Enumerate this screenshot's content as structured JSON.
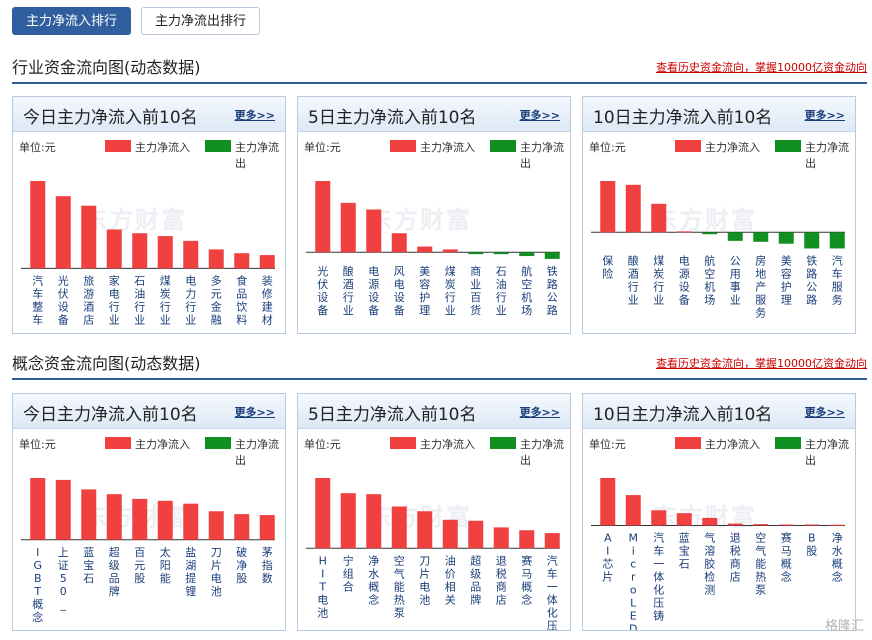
{
  "tabs": [
    {
      "label": "主力净流入排行",
      "active": true
    },
    {
      "label": "主力净流出排行",
      "active": false
    }
  ],
  "colors": {
    "inflow": "#f04040",
    "outflow": "#109020",
    "accent": "#2f5f9e",
    "link": "#cc0000"
  },
  "sections": [
    {
      "title": "行业资金流向图(动态数据)",
      "link": "查看历史资金流向，掌握10000亿资金动向",
      "panels": [
        {
          "title": "今日主力净流入前10名",
          "more": "更多>>",
          "unit": "单位:元",
          "legend_in": "主力净流入",
          "legend_out": "主力净流出",
          "chart_data": {
            "type": "bar",
            "categories": [
              "汽车整车",
              "光伏设备",
              "旅游酒店",
              "家电行业",
              "石油行业",
              "煤炭行业",
              "电力行业",
              "多元金融",
              "食品饮料",
              "装修建材"
            ],
            "values": [
              9.2,
              7.6,
              6.6,
              4.1,
              3.7,
              3.4,
              2.9,
              2.0,
              1.6,
              1.4
            ]
          }
        },
        {
          "title": "5日主力净流入前10名",
          "more": "更多>>",
          "unit": "单位:元",
          "legend_in": "主力净流入",
          "legend_out": "主力净流出",
          "chart_data": {
            "type": "bar",
            "categories": [
              "光伏设备",
              "酿酒行业",
              "电源设备",
              "风电设备",
              "美容护理",
              "煤炭行业",
              "商业百货",
              "石油行业",
              "航空机场",
              "铁路公路"
            ],
            "values": [
              7.5,
              5.2,
              4.5,
              2.0,
              0.6,
              0.3,
              -0.2,
              -0.2,
              -0.4,
              -0.7
            ]
          }
        },
        {
          "title": "10日主力净流入前10名",
          "more": "更多>>",
          "unit": "单位:元",
          "legend_in": "主力净流入",
          "legend_out": "主力净流出",
          "chart_data": {
            "type": "bar",
            "categories": [
              "保险",
              "酿酒行业",
              "煤炭行业",
              "电源设备",
              "航空机场",
              "公用事业",
              "房地产服务",
              "美容护理",
              "铁路公路",
              "汽车服务"
            ],
            "values": [
              5.4,
              5.0,
              3.0,
              0.1,
              -0.2,
              -0.9,
              -1.0,
              -1.2,
              -1.7,
              -1.7
            ]
          }
        }
      ]
    },
    {
      "title": "概念资金流向图(动态数据)",
      "link": "查看历史资金流向，掌握10000亿资金动向",
      "panels": [
        {
          "title": "今日主力净流入前10名",
          "more": "更多>>",
          "unit": "单位:元",
          "legend_in": "主力净流入",
          "legend_out": "主力净流出",
          "chart_data": {
            "type": "bar",
            "categories": [
              "IGBT概念",
              "上证50_",
              "蓝宝石",
              "超级品牌",
              "百元股",
              "太阳能",
              "盐湖提锂",
              "刀片电池",
              "破净股",
              "茅指数"
            ],
            "values": [
              6.5,
              6.3,
              5.3,
              4.8,
              4.3,
              4.1,
              3.8,
              3.0,
              2.7,
              2.6
            ]
          }
        },
        {
          "title": "5日主力净流入前10名",
          "more": "更多>>",
          "unit": "单位:元",
          "legend_in": "主力净流入",
          "legend_out": "主力净流出",
          "chart_data": {
            "type": "bar",
            "categories": [
              "HIT电池",
              "宁组合",
              "净水概念",
              "空气能热泵",
              "刀片电池",
              "油价相关",
              "超级品牌",
              "退税商店",
              "赛马概念",
              "汽车一体化压铸"
            ],
            "values": [
              7.4,
              5.8,
              5.7,
              4.4,
              3.9,
              3.0,
              2.9,
              2.2,
              1.9,
              1.6
            ]
          }
        },
        {
          "title": "10日主力净流入前10名",
          "more": "更多>>",
          "unit": "单位:元",
          "legend_in": "主力净流入",
          "legend_out": "主力净流出",
          "chart_data": {
            "type": "bar",
            "categories": [
              "AI芯片",
              "MicroLED",
              "汽车一体化压铸",
              "蓝宝石",
              "气溶胶检测",
              "退税商店",
              "空气能热泵",
              "赛马概念",
              "B股",
              "净水概念"
            ],
            "values": [
              5.0,
              3.2,
              1.6,
              1.3,
              0.8,
              0.2,
              0.15,
              0.1,
              0.1,
              0.08
            ]
          }
        }
      ]
    }
  ],
  "watermark": "东方财富",
  "corner_logo": "格隆汇"
}
